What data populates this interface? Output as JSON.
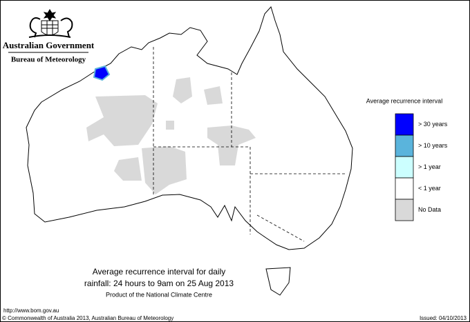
{
  "header": {
    "government": "Australian Government",
    "agency": "Bureau of Meteorology"
  },
  "legend": {
    "title": "Average recurrence interval",
    "items": [
      {
        "label": "> 30 years",
        "color": "#0000ff"
      },
      {
        "label": "> 10 years",
        "color": "#5ab4dc"
      },
      {
        "label": "> 1 year",
        "color": "#ccffff"
      },
      {
        "label": "< 1 year",
        "color": "#ffffff"
      },
      {
        "label": "No Data",
        "color": "#d9d9d9"
      }
    ]
  },
  "caption": {
    "lines": [
      "Average recurrence interval for daily",
      "rainfall: 24 hours to 9am on 25 Aug 2013",
      "Product of the National Climate Centre"
    ]
  },
  "footer": {
    "url": "http://www.bom.gov.au",
    "copyright": "© Commonwealth of Australia 2013, Australian Bureau of Meteorology",
    "issued": "Issued: 04/10/2013"
  }
}
